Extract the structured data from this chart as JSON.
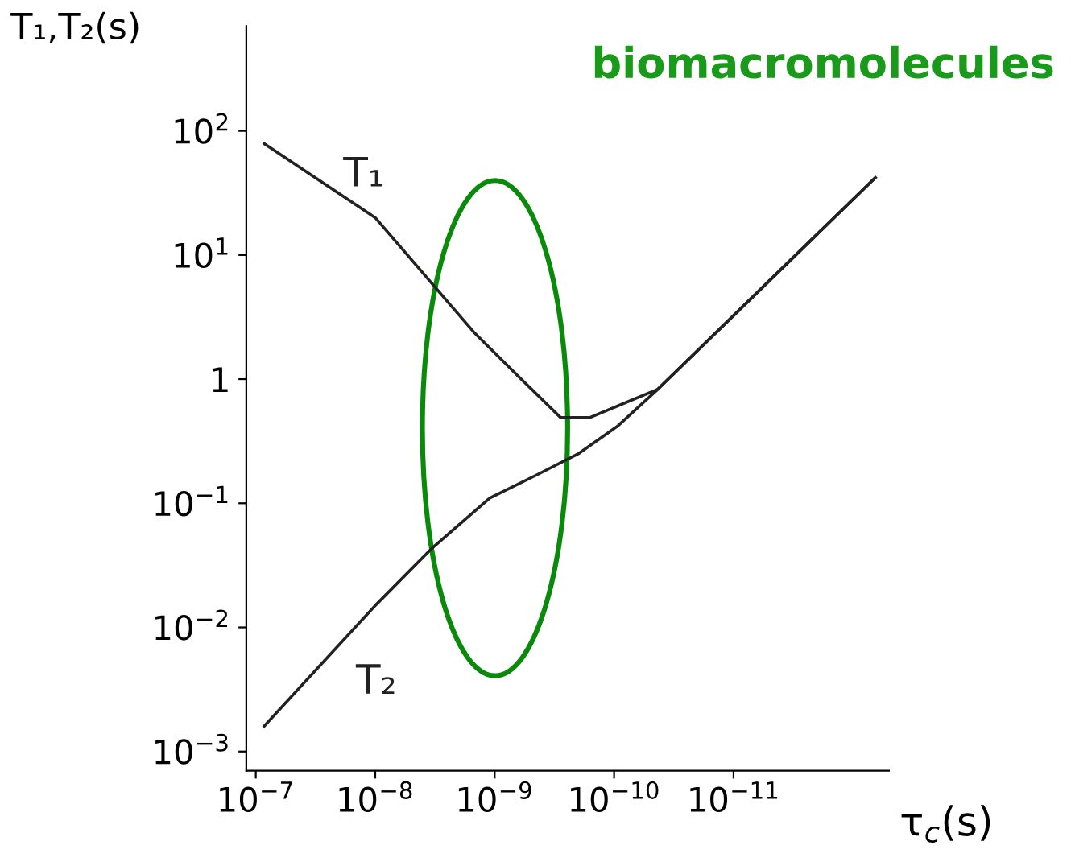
{
  "chart_data": {
    "type": "line",
    "title": "biomacromolecules",
    "xlabel": "τ$_{c}$(s)",
    "ylabel": "T₁,T₂(s)",
    "log": "xy",
    "grid": false,
    "legend": false,
    "marker": "none",
    "line_style": "solid",
    "xlim": [
      1.2e-07,
      5e-13
    ],
    "ylim": [
      0.0007,
      700
    ],
    "xticks": [
      {
        "value": 1e-07,
        "label": "10$^{−7}$"
      },
      {
        "value": 1e-08,
        "label": "10$^{−8}$"
      },
      {
        "value": 1e-09,
        "label": "10$^{−9}$"
      },
      {
        "value": 1e-10,
        "label": "10$^{−10}$"
      },
      {
        "value": 1e-11,
        "label": "10$^{−11}$"
      }
    ],
    "yticks": [
      {
        "value": 0.001,
        "label": "10$^{−3}$"
      },
      {
        "value": 0.01,
        "label": "10$^{−2}$"
      },
      {
        "value": 0.1,
        "label": "10$^{−1}$"
      },
      1,
      {
        "value": 10,
        "label": "10$^{1}$"
      },
      {
        "value": 100,
        "label": "10$^{2}$"
      }
    ],
    "series": [
      {
        "name": "T₁",
        "color": "#222222",
        "x": [
          8.5e-08,
          1e-08,
          1.5e-09,
          6e-10,
          2.8e-10,
          1.6e-10,
          4.3e-11,
          6.5e-13
        ],
        "values": [
          79,
          20,
          2.4,
          1,
          0.49,
          0.49,
          0.83,
          42
        ]
      },
      {
        "name": "T₂",
        "color": "#222222",
        "x": [
          8.5e-08,
          1e-08,
          3.3e-09,
          1.1e-09,
          4.4e-10,
          2e-10,
          9.3e-11,
          4.3e-11,
          6.5e-13
        ],
        "values": [
          0.0016,
          0.015,
          0.044,
          0.11,
          0.17,
          0.25,
          0.42,
          0.83,
          42
        ]
      }
    ]
  }
}
